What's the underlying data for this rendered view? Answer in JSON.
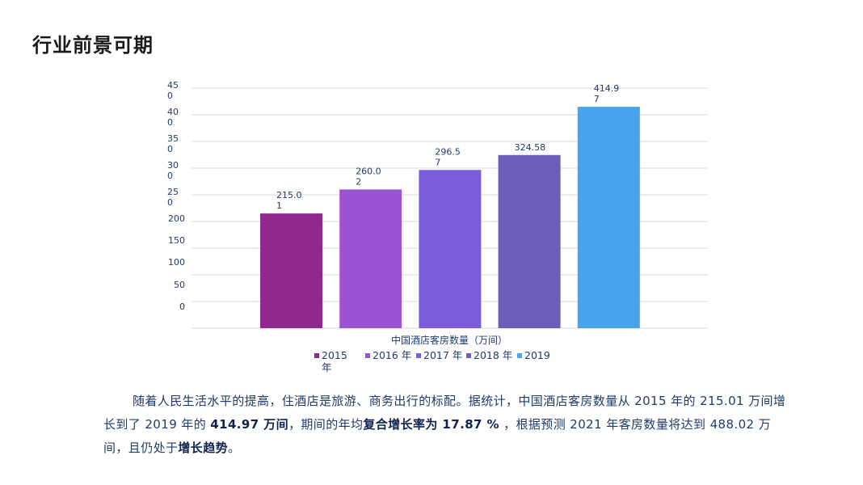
{
  "page": {
    "title": "行业前景可期"
  },
  "chart_data": {
    "type": "bar",
    "title": "",
    "xlabel": "中国酒店客房数量（万间）",
    "ylabel": "",
    "ylim": [
      0,
      450
    ],
    "yticks": [
      0,
      50,
      100,
      150,
      200,
      250,
      300,
      350,
      400,
      450
    ],
    "ytick_labels": [
      "0",
      "50",
      "100",
      "150",
      "200",
      "25\n0",
      "30\n0",
      "35\n0",
      "40\n0",
      "45\n0"
    ],
    "grid": true,
    "categories": [
      "2015 年",
      "2016 年",
      "2017 年",
      "2018 年",
      "2019"
    ],
    "values": [
      215.01,
      260.02,
      296.57,
      324.58,
      414.97
    ],
    "data_labels": [
      "215.0\n1",
      "260.0\n2",
      "296.5\n7",
      "324.58",
      "414.9\n7"
    ],
    "colors": [
      "#8e2a8e",
      "#9b55d2",
      "#7b5ddc",
      "#6b5eb8",
      "#47a3ea"
    ],
    "legend": {
      "position": "bottom",
      "entries": [
        "2015 年",
        "2016 年",
        "2017 年",
        "2018 年",
        "2019"
      ]
    }
  },
  "paragraph": {
    "p1": "随着人民生活水平的提高，住酒店是旅游、商务出行的标配。据统计，中国酒店客房数量从 2015 年的 215.01 万间增长到了 2019 年的 ",
    "b1": "414.97 万间",
    "p2": "，期间的年均",
    "b2": "复合增长率为 17.87 %",
    "p3": " ，根据预测 2021 年客房数量将达到 488.02 万间，且仍处于",
    "b3": "增长趋势",
    "p4": "。"
  },
  "colors": {
    "text": "#1f3a6b",
    "axis_text": "#1f3a6b",
    "grid": "#d9d9d9"
  }
}
